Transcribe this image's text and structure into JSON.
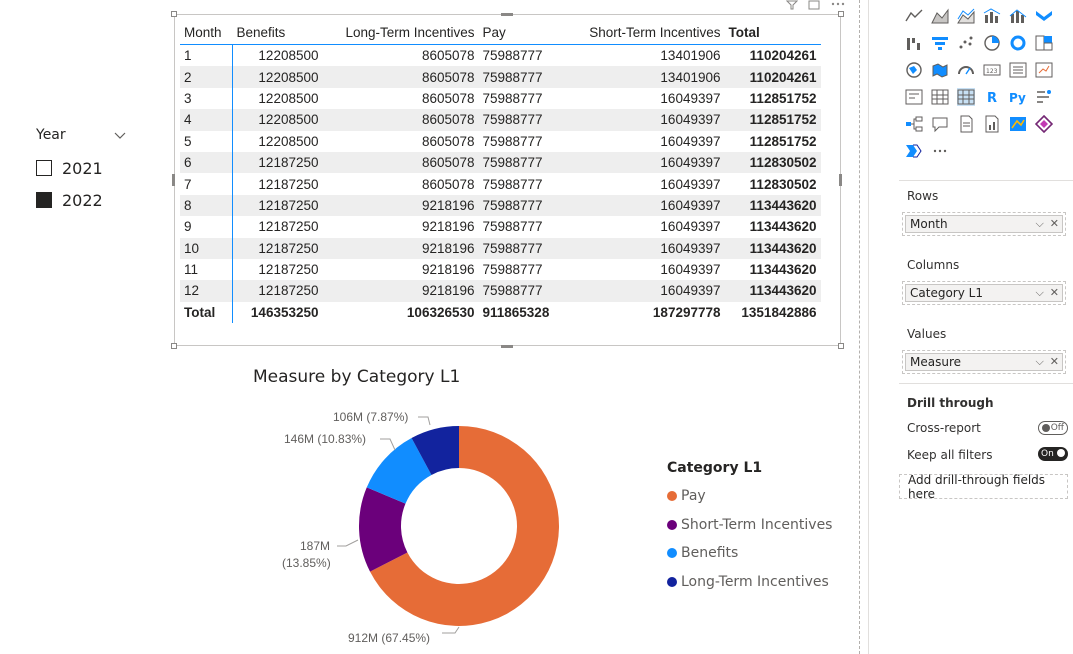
{
  "slicer": {
    "title": "Year",
    "items": [
      {
        "label": "2021",
        "checked": false
      },
      {
        "label": "2022",
        "checked": true
      }
    ]
  },
  "matrix": {
    "headers": [
      "Month",
      "Benefits",
      "Long-Term Incentives",
      "Pay",
      "Short-Term Incentives",
      "Total"
    ],
    "rows": [
      [
        "1",
        "12208500",
        "8605078",
        "75988777",
        "13401906",
        "110204261"
      ],
      [
        "2",
        "12208500",
        "8605078",
        "75988777",
        "13401906",
        "110204261"
      ],
      [
        "3",
        "12208500",
        "8605078",
        "75988777",
        "16049397",
        "112851752"
      ],
      [
        "4",
        "12208500",
        "8605078",
        "75988777",
        "16049397",
        "112851752"
      ],
      [
        "5",
        "12208500",
        "8605078",
        "75988777",
        "16049397",
        "112851752"
      ],
      [
        "6",
        "12187250",
        "8605078",
        "75988777",
        "16049397",
        "112830502"
      ],
      [
        "7",
        "12187250",
        "8605078",
        "75988777",
        "16049397",
        "112830502"
      ],
      [
        "8",
        "12187250",
        "9218196",
        "75988777",
        "16049397",
        "113443620"
      ],
      [
        "9",
        "12187250",
        "9218196",
        "75988777",
        "16049397",
        "113443620"
      ],
      [
        "10",
        "12187250",
        "9218196",
        "75988777",
        "16049397",
        "113443620"
      ],
      [
        "11",
        "12187250",
        "9218196",
        "75988777",
        "16049397",
        "113443620"
      ],
      [
        "12",
        "12187250",
        "9218196",
        "75988777",
        "16049397",
        "113443620"
      ]
    ],
    "total_row": [
      "Total",
      "146353250",
      "106326530",
      "911865328",
      "187297778",
      "1351842886"
    ]
  },
  "chart_data": {
    "type": "pie",
    "title": "Measure by Category L1",
    "legend_title": "Category L1",
    "legend_position": "right",
    "categories": [
      "Pay",
      "Short-Term Incentives",
      "Benefits",
      "Long-Term Incentives"
    ],
    "values": [
      911865328,
      187297778,
      146353250,
      106326530
    ],
    "colors": [
      "#e66c37",
      "#6b007b",
      "#118dff",
      "#12239e"
    ],
    "labels": {
      "Pay": "912M (67.45%)",
      "Short-Term Incentives_a": "187M",
      "Short-Term Incentives_b": "(13.85%)",
      "Benefits": "146M (10.83%)",
      "Long-Term Incentives": "106M (7.87%)"
    }
  },
  "pane": {
    "rows_label": "Rows",
    "rows_field": "Month",
    "columns_label": "Columns",
    "columns_field": "Category L1",
    "values_label": "Values",
    "values_field": "Measure",
    "drill_title": "Drill through",
    "cross_report_label": "Cross-report",
    "cross_report_state": "Off",
    "keep_filters_label": "Keep all filters",
    "keep_filters_state": "On",
    "add_drill_label": "Add drill-through fields here",
    "more_label": "···",
    "r_label": "R",
    "py_label": "Py",
    "visuals": [
      "line-chart-icon",
      "area-chart-icon",
      "stacked-area-chart-icon",
      "line-clustered-column-icon",
      "line-stacked-column-icon",
      "ribbon-chart-icon",
      "waterfall-chart-icon",
      "funnel-icon",
      "scatter-chart-icon",
      "pie-chart-icon",
      "donut-chart-icon",
      "treemap-icon",
      "map-icon",
      "filled-map-icon",
      "gauge-icon",
      "card-icon",
      "multi-row-card-icon",
      "kpi-icon",
      "slicer-icon",
      "table-icon",
      "matrix-icon",
      "r-visual-icon",
      "python-visual-icon",
      "key-influencers-icon",
      "decomposition-tree-icon",
      "qa-icon",
      "smart-narrative-icon",
      "paginated-report-icon",
      "arcgis-map-icon",
      "power-apps-icon",
      "power-automate-icon",
      "more-visuals-icon"
    ]
  }
}
